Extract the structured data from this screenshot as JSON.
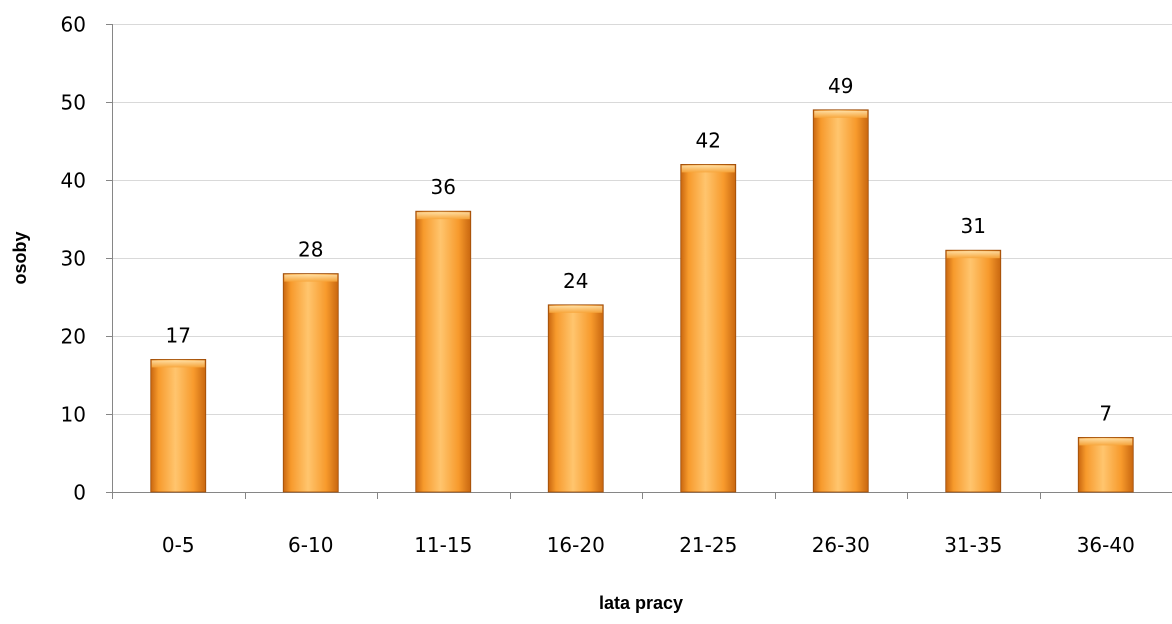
{
  "chart_data": {
    "type": "bar",
    "categories": [
      "0-5",
      "6-10",
      "11-15",
      "16-20",
      "21-25",
      "26-30",
      "31-35",
      "36-40"
    ],
    "values": [
      17,
      28,
      36,
      24,
      42,
      49,
      31,
      7
    ],
    "data_labels": [
      "17",
      "28",
      "36",
      "24",
      "42",
      "49",
      "31",
      "7"
    ],
    "title": "",
    "xlabel": "lata pracy",
    "ylabel": "osoby",
    "ylim": [
      0,
      60
    ],
    "yticks": [
      0,
      10,
      20,
      30,
      40,
      50,
      60
    ],
    "ytick_labels": [
      "0",
      "10",
      "20",
      "30",
      "40",
      "50",
      "60"
    ],
    "grid": true,
    "legend": "none",
    "colors": {
      "bar_light": "#ffc56e",
      "bar_mid": "#f79a2c",
      "bar_dark": "#c8660f",
      "bar_edge": "#9a4a08",
      "gridline": "#d9d9d9"
    }
  }
}
